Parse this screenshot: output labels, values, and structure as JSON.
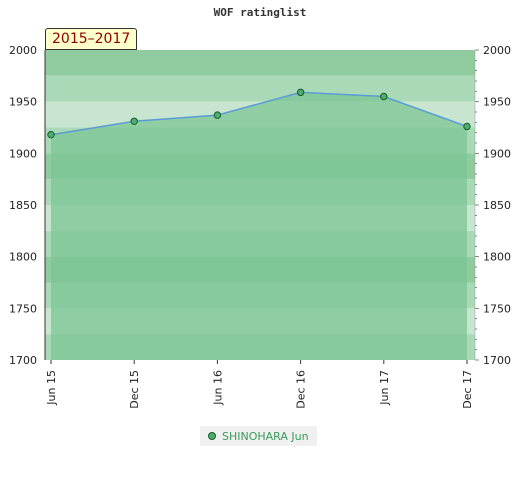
{
  "chart_data": {
    "type": "area",
    "title": "WOF ratinglist",
    "range_label": "2015–2017",
    "categories": [
      "Jun 15",
      "Dec 15",
      "Jun 16",
      "Dec 16",
      "Jun 17",
      "Dec 17"
    ],
    "series": [
      {
        "name": "SHINOHARA Jun",
        "values": [
          1918,
          1931,
          1937,
          1959,
          1955,
          1926
        ]
      }
    ],
    "ylim": [
      1700,
      2000
    ],
    "yticks": [
      1700,
      1750,
      1800,
      1850,
      1900,
      1950,
      2000
    ],
    "grid": true,
    "legend_position": "bottom",
    "colors": {
      "line": "#5b9bd5",
      "marker_fill": "#4caf70",
      "marker_stroke": "#1a5a2a",
      "area_fill": "#7cc494",
      "band_light": "#c8e6cf",
      "band_mid": "#a9d9b6",
      "band_dark": "#8fcb9f"
    }
  }
}
